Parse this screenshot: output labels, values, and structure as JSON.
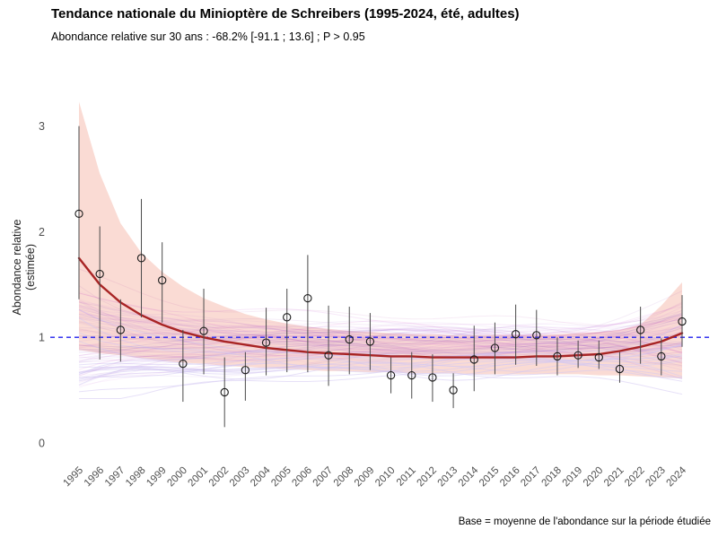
{
  "header": {
    "title": "Tendance nationale du Minioptère de Schreibers (1995-2024, été, adultes)",
    "subtitle": "Abondance relative sur 30 ans : -68.2% [-91.1 ; 13.6] ; P > 0.95"
  },
  "footnote": "Base = moyenne de l'abondance sur la période étudiée",
  "chart_data": {
    "type": "line",
    "title": "Tendance nationale du Minioptère de Schreibers (1995-2024, été, adultes)",
    "subtitle": "Abondance relative sur 30 ans : -68.2% [-91.1 ; 13.6] ; P > 0.95",
    "ylabel_lines": [
      "Abondance relative",
      "(estimée)"
    ],
    "xlabel": "",
    "x": [
      1995,
      1996,
      1997,
      1998,
      1999,
      2000,
      2001,
      2002,
      2003,
      2004,
      2005,
      2006,
      2007,
      2008,
      2009,
      2010,
      2011,
      2012,
      2013,
      2014,
      2015,
      2016,
      2017,
      2018,
      2019,
      2020,
      2021,
      2022,
      2023,
      2024
    ],
    "yticks": [
      0,
      1,
      2,
      3
    ],
    "ylim": [
      0,
      3.3
    ],
    "baseline": 1,
    "grid": false,
    "legend": "none",
    "series": [
      {
        "name": "indice-annuel-points",
        "type": "scatter-errorbars",
        "values": [
          2.17,
          1.6,
          1.07,
          1.75,
          1.54,
          0.75,
          1.06,
          0.48,
          0.69,
          0.95,
          1.19,
          1.37,
          0.83,
          0.98,
          0.96,
          0.64,
          0.64,
          0.62,
          0.5,
          0.79,
          0.9,
          1.03,
          1.02,
          0.82,
          0.83,
          0.81,
          0.7,
          1.07,
          0.82,
          1.15
        ],
        "ci_low": [
          1.36,
          0.79,
          0.77,
          1.19,
          1.14,
          0.39,
          0.65,
          0.15,
          0.4,
          0.64,
          0.67,
          0.67,
          0.54,
          0.65,
          0.69,
          0.47,
          0.42,
          0.39,
          0.33,
          0.49,
          0.65,
          0.74,
          0.73,
          0.64,
          0.71,
          0.7,
          0.57,
          0.75,
          0.64,
          0.91
        ],
        "ci_high": [
          3.0,
          2.05,
          1.36,
          2.31,
          1.9,
          1.07,
          1.46,
          0.81,
          0.86,
          1.28,
          1.46,
          1.78,
          1.3,
          1.29,
          1.23,
          0.81,
          0.86,
          0.84,
          0.66,
          1.11,
          1.14,
          1.31,
          1.26,
          1.0,
          0.97,
          0.97,
          0.86,
          1.29,
          0.99,
          1.4
        ]
      },
      {
        "name": "tendance-estimee",
        "type": "line",
        "values": [
          1.75,
          1.5,
          1.33,
          1.21,
          1.12,
          1.05,
          1.0,
          0.96,
          0.93,
          0.9,
          0.88,
          0.86,
          0.85,
          0.84,
          0.83,
          0.82,
          0.82,
          0.81,
          0.81,
          0.81,
          0.81,
          0.81,
          0.82,
          0.82,
          0.83,
          0.84,
          0.87,
          0.91,
          0.96,
          1.04
        ]
      },
      {
        "name": "intervalle-confiance-tendance",
        "type": "band",
        "high": [
          3.23,
          2.55,
          2.08,
          1.8,
          1.62,
          1.48,
          1.37,
          1.29,
          1.22,
          1.17,
          1.13,
          1.1,
          1.08,
          1.06,
          1.05,
          1.04,
          1.03,
          1.03,
          1.02,
          1.02,
          1.02,
          1.02,
          1.02,
          1.03,
          1.04,
          1.05,
          1.07,
          1.12,
          1.3,
          1.52
        ],
        "low": [
          0.88,
          0.85,
          0.83,
          0.8,
          0.78,
          0.76,
          0.75,
          0.73,
          0.72,
          0.71,
          0.7,
          0.69,
          0.68,
          0.68,
          0.67,
          0.67,
          0.66,
          0.66,
          0.66,
          0.65,
          0.65,
          0.65,
          0.65,
          0.65,
          0.65,
          0.64,
          0.64,
          0.63,
          0.62,
          0.61
        ]
      }
    ],
    "bootstrap_lines": {
      "count": 95,
      "style": "thin translucent violet trajectories"
    },
    "colors": {
      "band_fill": "rgba(232,93,58,0.22)",
      "trend_line": "#a82424",
      "baseline_dashed": "#2020ee",
      "error_bar": "#4a4a4a",
      "point_stroke": "#1a1a1a",
      "tick_label": "#4f4f4f"
    }
  }
}
